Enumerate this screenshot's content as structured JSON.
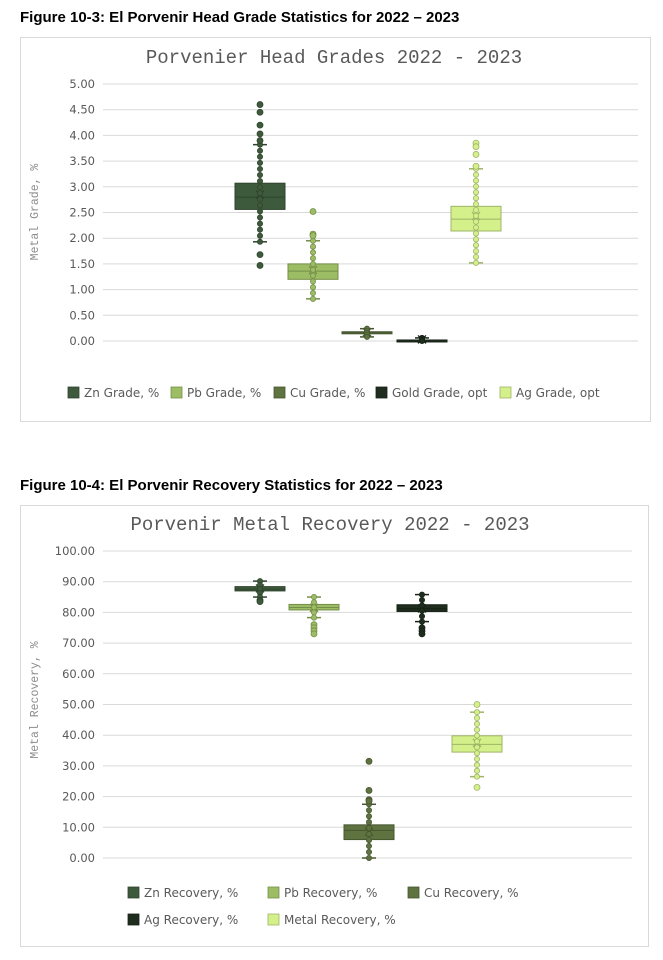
{
  "figures": [
    {
      "caption": "Figure 10-3:   El Porvenir Head Grade Statistics for 2022 – 2023"
    },
    {
      "caption": "Figure 10-4:   El Porvenir Recovery Statistics for 2022 – 2023"
    }
  ],
  "chart_data": [
    {
      "type": "box",
      "title": "Porvenier Head Grades 2022 - 2023",
      "ylabel": "Metal Grade, %",
      "ylim": [
        0,
        5
      ],
      "yticks": [
        "0.00",
        "0.50",
        "1.00",
        "1.50",
        "2.00",
        "2.50",
        "3.00",
        "3.50",
        "4.00",
        "4.50",
        "5.00"
      ],
      "grid": true,
      "legend_position": "bottom",
      "series": [
        {
          "name": "Zn Grade, %",
          "color": "#3e5a3c",
          "min": 1.93,
          "q1": 2.56,
          "median": 2.8,
          "q3": 3.07,
          "max": 3.82,
          "mean": 2.85,
          "outliers": [
            4.6,
            4.45,
            4.2,
            4.03,
            3.9,
            1.68,
            1.47
          ]
        },
        {
          "name": "Pb Grade, %",
          "color": "#9cbd63",
          "min": 0.82,
          "q1": 1.2,
          "median": 1.36,
          "q3": 1.5,
          "max": 1.95,
          "mean": 1.38,
          "outliers": [
            2.52,
            2.08,
            2.05
          ]
        },
        {
          "name": "Cu Grade, %",
          "color": "#5f7340",
          "min": 0.08,
          "q1": 0.14,
          "median": 0.16,
          "q3": 0.18,
          "max": 0.24,
          "mean": 0.17,
          "outliers": []
        },
        {
          "name": "Gold Grade, opt",
          "color": "#1f2d1f",
          "min": 0.0,
          "q1": 0.01,
          "median": 0.02,
          "q3": 0.02,
          "max": 0.06,
          "mean": 0.03,
          "outliers": []
        },
        {
          "name": "Ag Grade, opt",
          "color": "#d4f08a",
          "min": 1.52,
          "q1": 2.14,
          "median": 2.37,
          "q3": 2.62,
          "max": 3.35,
          "mean": 2.43,
          "outliers": [
            3.85,
            3.78,
            3.63,
            3.4
          ]
        }
      ]
    },
    {
      "type": "box",
      "title": "Porvenir Metal Recovery 2022 - 2023",
      "ylabel": "Metal Recovery, %",
      "ylim": [
        0,
        100
      ],
      "yticks": [
        "0.00",
        "10.00",
        "20.00",
        "30.00",
        "40.00",
        "50.00",
        "60.00",
        "70.00",
        "80.00",
        "90.00",
        "100.00"
      ],
      "grid": true,
      "legend_position": "bottom",
      "series": [
        {
          "name": "Zn Recovery, %",
          "color": "#3e5a3c",
          "min": 85.0,
          "q1": 87.0,
          "median": 87.6,
          "q3": 88.4,
          "max": 90.2,
          "mean": 87.8,
          "outliers": [
            84.0,
            83.5
          ]
        },
        {
          "name": "Pb Recovery, %",
          "color": "#9cbd63",
          "min": 78.3,
          "q1": 80.8,
          "median": 81.6,
          "q3": 82.6,
          "max": 85.0,
          "mean": 81.5,
          "outliers": [
            76.0,
            75.0,
            74.0,
            73.0
          ]
        },
        {
          "name": "Cu Recovery, %",
          "color": "#5f7340",
          "min": 0.0,
          "q1": 6.0,
          "median": 9.0,
          "q3": 10.8,
          "max": 17.5,
          "mean": 8.5,
          "outliers": [
            31.5,
            22.0,
            19.0,
            18.5
          ]
        },
        {
          "name": "Ag Recovery, %",
          "color": "#1f2d1f",
          "min": 77.0,
          "q1": 80.3,
          "median": 81.2,
          "q3": 82.5,
          "max": 85.8,
          "mean": 81.3,
          "outliers": [
            75.0,
            74.0,
            73.0
          ]
        },
        {
          "name": "Metal Recovery, %",
          "color": "#d4f08a",
          "min": 26.5,
          "q1": 34.5,
          "median": 37.0,
          "q3": 39.8,
          "max": 47.5,
          "mean": 37.5,
          "outliers": [
            50.0,
            23.0
          ]
        }
      ]
    }
  ]
}
